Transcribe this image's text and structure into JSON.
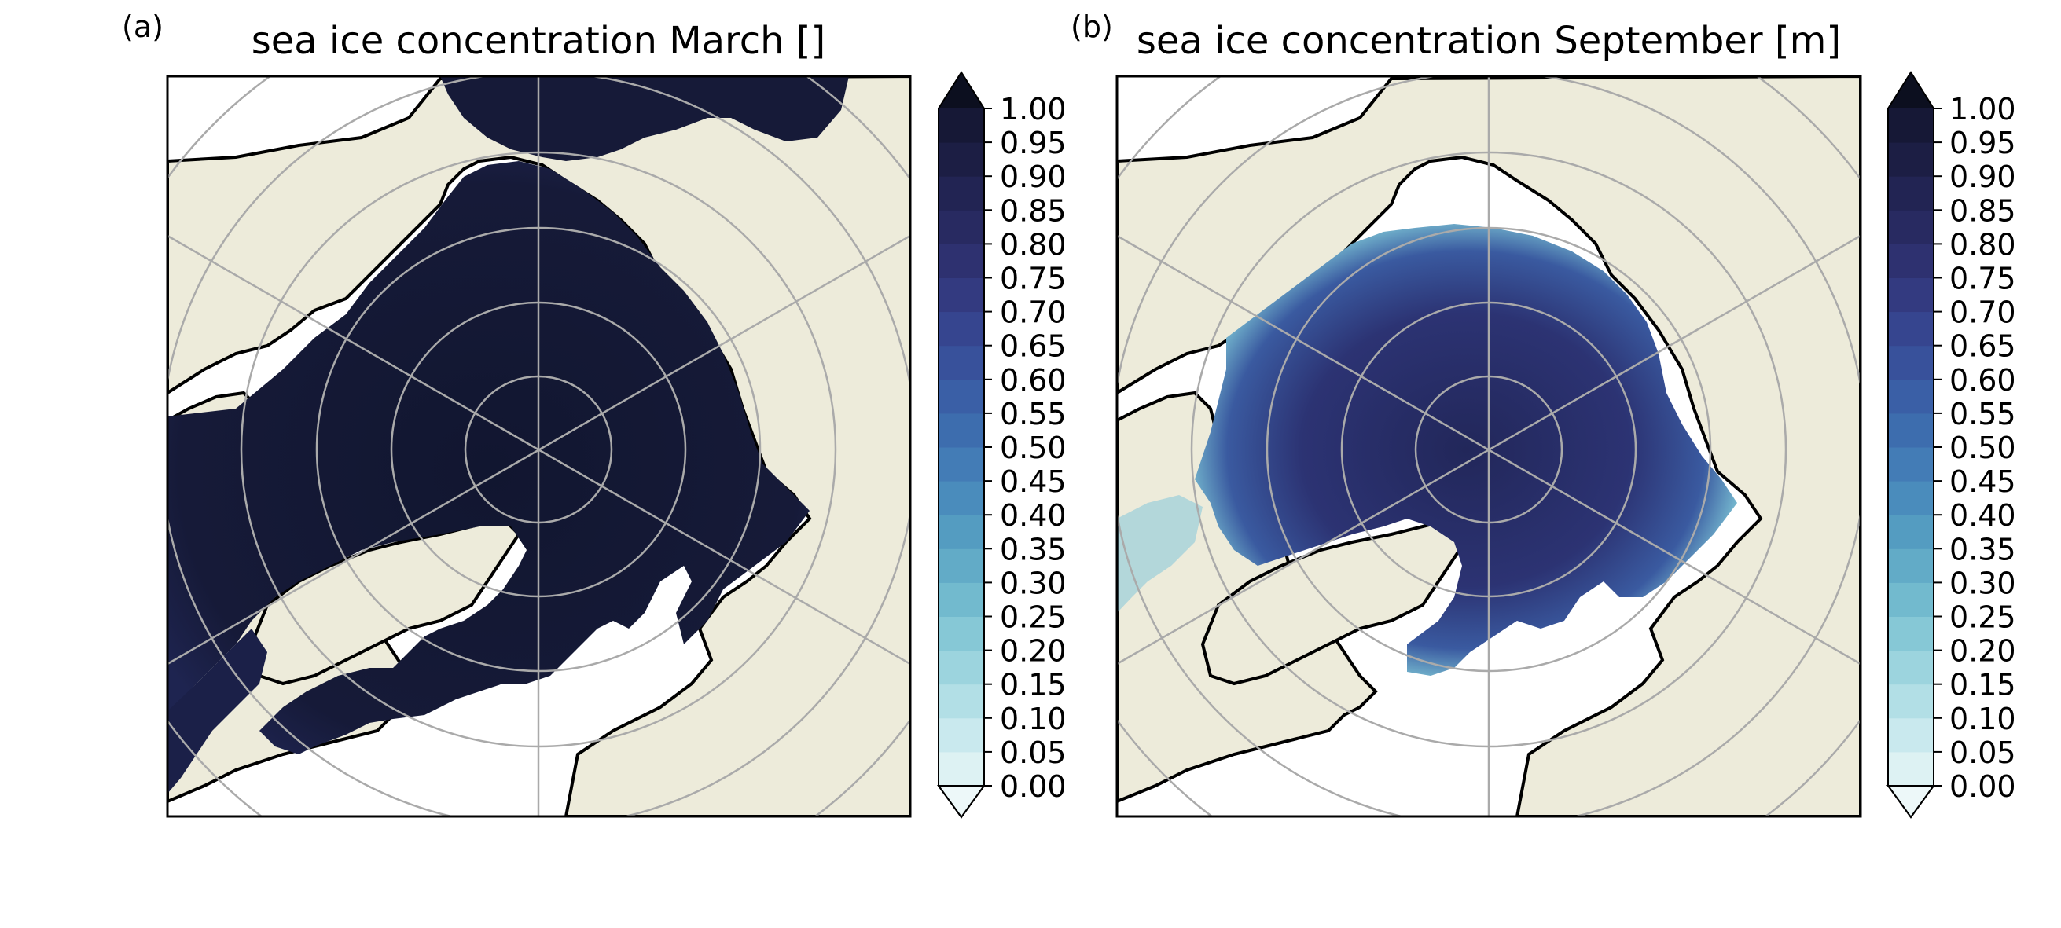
{
  "figure": {
    "panels": [
      {
        "panel_label": "(a)",
        "title": "sea ice concentration March []",
        "month": "March",
        "cbar_ticks": [
          "1.00",
          "0.95",
          "0.90",
          "0.85",
          "0.80",
          "0.75",
          "0.70",
          "0.65",
          "0.60",
          "0.55",
          "0.50",
          "0.45",
          "0.40",
          "0.35",
          "0.30",
          "0.25",
          "0.20",
          "0.15",
          "0.10",
          "0.05",
          "0.00"
        ]
      },
      {
        "panel_label": "(b)",
        "title": "sea ice concentration September [m]",
        "month": "September",
        "cbar_ticks": [
          "1.00",
          "0.95",
          "0.90",
          "0.85",
          "0.80",
          "0.75",
          "0.70",
          "0.65",
          "0.60",
          "0.55",
          "0.50",
          "0.45",
          "0.40",
          "0.35",
          "0.30",
          "0.25",
          "0.20",
          "0.15",
          "0.10",
          "0.05",
          "0.00"
        ]
      }
    ],
    "colors": {
      "land": "#EDEBDA",
      "ocean": "#FFFFFF",
      "coast": "#000000",
      "graticule": "#AAAAAA",
      "ice_max": "#141A33",
      "ice_min": "#DDF2F3",
      "colormap": [
        "#DDF2F3",
        "#C9E9EE",
        "#B2DFE6",
        "#9CD4DE",
        "#86C8D6",
        "#72BACE",
        "#62ABC7",
        "#549CC1",
        "#4A8CBC",
        "#437CB6",
        "#3D6DAE",
        "#3A5FA6",
        "#38519B",
        "#36458F",
        "#333A80",
        "#2E3170",
        "#282A61",
        "#222453",
        "#1C1E44",
        "#161836"
      ],
      "over": "#0C0F1F",
      "under": "#EDF8F9"
    },
    "map_projection": "north polar stereographic",
    "latitude_circles_deg": [
      80,
      70,
      60,
      50,
      40
    ],
    "meridians_deg": [
      0,
      60,
      120,
      180,
      240,
      300
    ]
  }
}
